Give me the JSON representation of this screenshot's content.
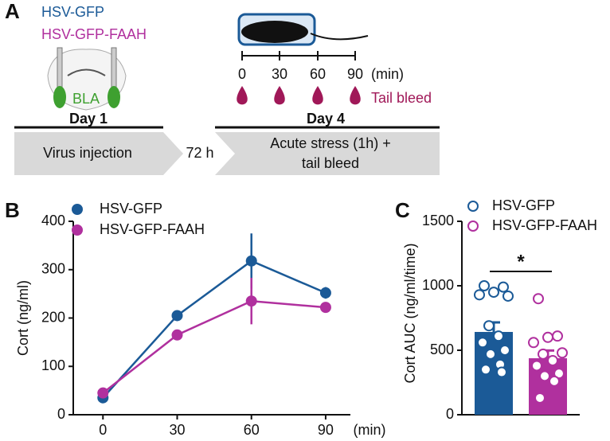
{
  "panel_labels": [
    "A",
    "B",
    "C"
  ],
  "diagram": {
    "legend": [
      "HSV-GFP",
      "HSV-GFP-FAAH"
    ],
    "region": "BLA",
    "day1": "Day 1",
    "day4": "Day 4",
    "times": [
      0,
      30,
      60,
      90
    ],
    "time_unit": "(min)",
    "tail_bleed": "Tail bleed",
    "step1": "Virus injection",
    "interval": "72 h",
    "step2_line1": "Acute stress (1h) +",
    "step2_line2": "tail bleed"
  },
  "chart_data": [
    {
      "type": "line",
      "x": [
        0,
        30,
        60,
        90
      ],
      "xlim": [
        -12,
        100
      ],
      "xticks": [
        0,
        30,
        60,
        90
      ],
      "xlabel": "(min)",
      "ylim": [
        0,
        400
      ],
      "yticks": [
        0,
        100,
        200,
        300,
        400
      ],
      "ylabel": "Cort (ng/ml)",
      "series": [
        {
          "name": "HSV-GFP",
          "color": "#1b5a97",
          "values": [
            35,
            205,
            318,
            252
          ],
          "errors": [
            5,
            10,
            57,
            12
          ]
        },
        {
          "name": "HSV-GFP-FAAH",
          "color": "#b0309e",
          "values": [
            45,
            165,
            235,
            222
          ],
          "errors": [
            3,
            10,
            48,
            8
          ]
        }
      ]
    },
    {
      "type": "bar",
      "ylim": [
        0,
        1500
      ],
      "yticks": [
        0,
        500,
        1000,
        1500
      ],
      "ylabel": "Cort AUC (ng/ml/time)",
      "annotation": "*",
      "series": [
        {
          "name": "HSV-GFP",
          "color": "#1b5a97",
          "values": [
            642
          ],
          "errors": [
            74
          ],
          "points": [
            1000,
            990,
            950,
            930,
            920,
            690,
            610,
            560,
            500,
            470,
            390,
            350,
            330
          ]
        },
        {
          "name": "HSV-GFP-FAAH",
          "color": "#b0309e",
          "values": [
            438
          ],
          "errors": [
            60
          ],
          "points": [
            900,
            610,
            600,
            560,
            480,
            470,
            420,
            380,
            320,
            300,
            260,
            130
          ]
        }
      ]
    }
  ]
}
